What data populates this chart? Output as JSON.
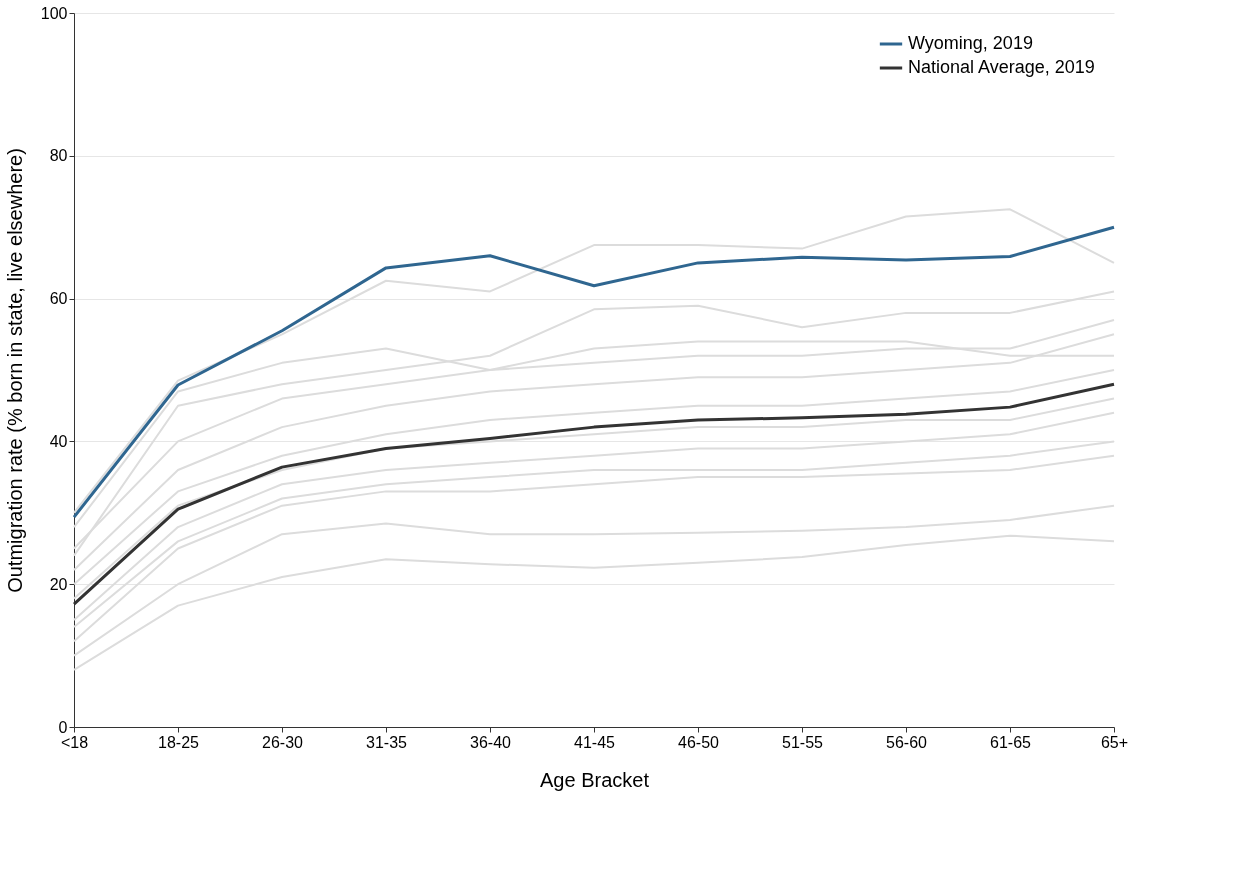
{
  "chart_data": {
    "type": "line",
    "xlabel": "Age Bracket",
    "ylabel": "Outmigration rate (% born in state, live elsewhere)",
    "categories": [
      "<18",
      "18-25",
      "26-30",
      "31-35",
      "36-40",
      "41-45",
      "46-50",
      "51-55",
      "56-60",
      "61-65",
      "65+"
    ],
    "ylim": [
      0,
      100
    ],
    "yticks": [
      0,
      20,
      40,
      60,
      80,
      100
    ],
    "grid": "y",
    "legend": "top right",
    "marker": "none",
    "line_style": "solid",
    "series": [
      {
        "color": "#dcdcdc",
        "values": [
          30,
          48.5,
          55,
          62.5,
          61,
          67.5,
          67.5,
          67,
          71.5,
          72.5,
          65
        ]
      },
      {
        "color": "#dcdcdc",
        "values": [
          8,
          17,
          21,
          23.5,
          22.8,
          22.3,
          23,
          23.8,
          25.5,
          26.8,
          26
        ]
      },
      {
        "color": "#dcdcdc",
        "values": [
          10,
          20,
          27,
          28.5,
          27,
          27,
          27.2,
          27.5,
          28,
          29,
          31
        ]
      },
      {
        "color": "#dcdcdc",
        "values": [
          12,
          25,
          31,
          33,
          33,
          34,
          35,
          35,
          35.5,
          36,
          38
        ]
      },
      {
        "color": "#dcdcdc",
        "values": [
          15,
          28,
          34,
          36,
          37,
          38,
          39,
          39,
          40,
          41,
          44
        ]
      },
      {
        "color": "#dcdcdc",
        "values": [
          20,
          33,
          38,
          41,
          43,
          44,
          45,
          45,
          46,
          47,
          50
        ]
      },
      {
        "color": "#dcdcdc",
        "values": [
          22,
          36,
          42,
          45,
          47,
          48,
          49,
          49,
          50,
          51,
          55
        ]
      },
      {
        "color": "#dcdcdc",
        "values": [
          25,
          40,
          46,
          48,
          50,
          51,
          52,
          52,
          53,
          53,
          57
        ]
      },
      {
        "color": "#dcdcdc",
        "values": [
          18,
          31,
          36,
          39,
          40,
          41,
          42,
          42,
          43,
          43,
          46
        ]
      },
      {
        "color": "#dcdcdc",
        "values": [
          24,
          45,
          48,
          50,
          52,
          58.5,
          59,
          56,
          58,
          58,
          61
        ]
      },
      {
        "color": "#dcdcdc",
        "values": [
          14,
          26,
          32,
          34,
          35,
          36,
          36,
          36,
          37,
          38,
          40
        ]
      },
      {
        "color": "#dcdcdc",
        "values": [
          28,
          47,
          51,
          53,
          50,
          53,
          54,
          54,
          54,
          52,
          52
        ]
      },
      {
        "name": "Wyoming, 2019",
        "color": "#2f6690",
        "values": [
          29.4,
          47.9,
          55.5,
          64.3,
          66,
          61.8,
          65,
          65.8,
          65.4,
          65.9,
          70
        ]
      },
      {
        "name": "National Average, 2019",
        "color": "#333333",
        "values": [
          17.2,
          30.5,
          36.4,
          39,
          40.4,
          42,
          43,
          43.3,
          43.8,
          44.8,
          48
        ]
      }
    ]
  }
}
